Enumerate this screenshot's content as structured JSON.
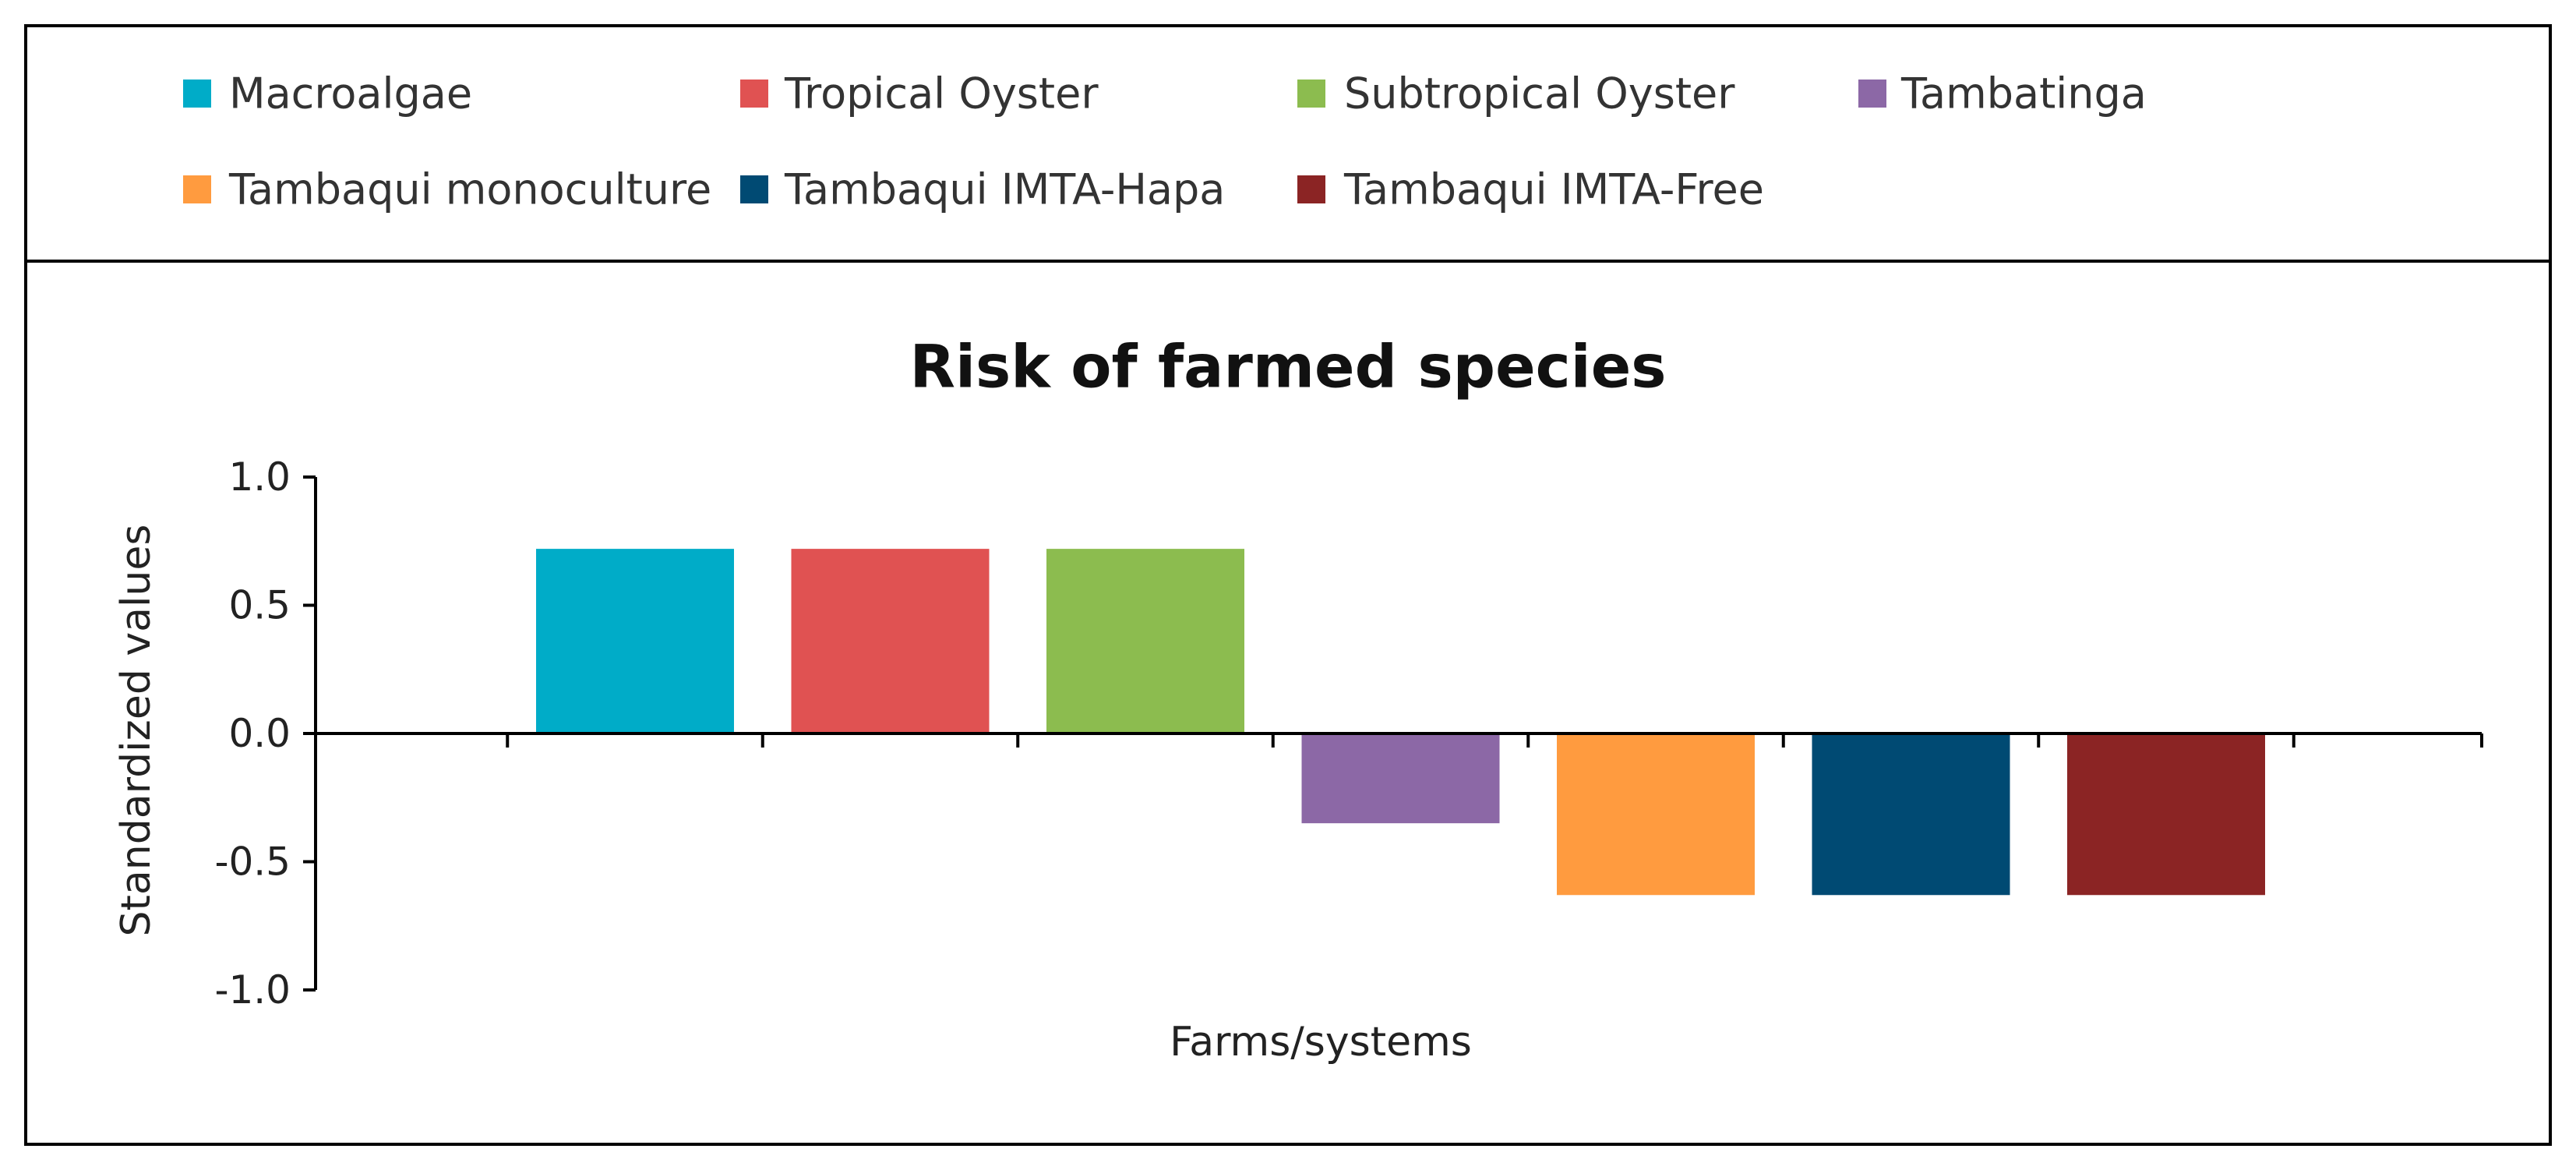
{
  "chart_data": {
    "type": "bar",
    "title": "Risk of farmed species",
    "xlabel": "Farms/systems",
    "ylabel": "Standardized values",
    "ylim": [
      -1.0,
      1.0
    ],
    "yticks": [
      "1.0",
      "0.5",
      "0.0",
      "-0.5",
      "-1.0"
    ],
    "ytick_values": [
      1.0,
      0.5,
      0.0,
      -0.5,
      -1.0
    ],
    "legend_position": "top",
    "categories": [
      "Macroalgae",
      "Tropical Oyster",
      "Subtropical Oyster",
      "Tambatinga",
      "Tambaqui monoculture",
      "Tambaqui IMTA-Hapa",
      "Tambaqui IMTA-Free"
    ],
    "values": [
      0.72,
      0.72,
      0.72,
      -0.35,
      -0.63,
      -0.63,
      -0.63
    ],
    "colors": [
      "#00acc8",
      "#e05252",
      "#8cbc4f",
      "#8c68a6",
      "#ff9b3f",
      "#004a73",
      "#8b2424"
    ]
  }
}
